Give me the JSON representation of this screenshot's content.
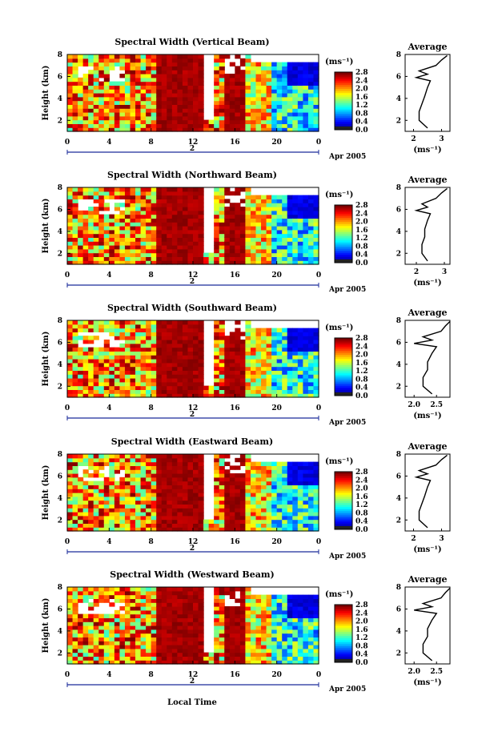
{
  "figure": {
    "x_axis_title": "Local Time",
    "date_label": "Apr 2005",
    "day_label": "2",
    "colorbar_unit": "(ms⁻¹)",
    "avg_unit": "(ms⁻¹)"
  },
  "chart_data": [
    {
      "type": "heatmap",
      "title": "Spectral Width (Vertical Beam)",
      "ylabel": "Height (km)",
      "xlabel": "Local Time",
      "x_ticks": [
        "0",
        "4",
        "8",
        "12",
        "16",
        "20",
        "0"
      ],
      "y_ticks": [
        "2",
        "4",
        "6",
        "8"
      ],
      "xlim": [
        0,
        24
      ],
      "ylim": [
        1,
        8
      ],
      "colorbar": {
        "ticks": [
          "2.8",
          "2.4",
          "2.0",
          "1.6",
          "1.2",
          "0.8",
          "0.4",
          "0.0"
        ],
        "range": [
          0.0,
          2.8
        ]
      },
      "average_profile": {
        "title": "Average",
        "x_ticks": [
          "2",
          "3"
        ],
        "xlim": [
          1.7,
          3.3
        ],
        "y_ticks": [
          "2",
          "4",
          "6",
          "8"
        ],
        "heights": [
          1.3,
          2.0,
          2.8,
          3.5,
          4.2,
          5.0,
          5.6,
          5.9,
          6.2,
          6.5,
          7.0,
          7.5,
          7.9
        ],
        "values": [
          2.5,
          2.2,
          2.2,
          2.3,
          2.4,
          2.5,
          2.6,
          2.1,
          2.5,
          2.2,
          2.8,
          3.0,
          3.2
        ]
      }
    },
    {
      "type": "heatmap",
      "title": "Spectral Width (Northward Beam)",
      "ylabel": "Height (km)",
      "xlabel": "Local Time",
      "x_ticks": [
        "0",
        "4",
        "8",
        "12",
        "16",
        "20",
        "0"
      ],
      "y_ticks": [
        "2",
        "4",
        "6",
        "8"
      ],
      "xlim": [
        0,
        24
      ],
      "ylim": [
        1,
        8
      ],
      "colorbar": {
        "ticks": [
          "2.8",
          "2.4",
          "2.0",
          "1.6",
          "1.2",
          "0.8",
          "0.4",
          "0.0"
        ],
        "range": [
          0.0,
          2.8
        ]
      },
      "average_profile": {
        "title": "Average",
        "x_ticks": [
          "2",
          "3"
        ],
        "xlim": [
          1.6,
          3.2
        ],
        "y_ticks": [
          "2",
          "4",
          "6",
          "8"
        ],
        "heights": [
          1.3,
          2.0,
          2.8,
          3.5,
          4.2,
          5.0,
          5.6,
          5.9,
          6.2,
          6.5,
          7.0,
          7.5,
          7.9
        ],
        "values": [
          2.4,
          2.2,
          2.2,
          2.3,
          2.3,
          2.4,
          2.5,
          2.0,
          2.4,
          2.2,
          2.7,
          2.9,
          3.1
        ]
      }
    },
    {
      "type": "heatmap",
      "title": "Spectral Width (Southward Beam)",
      "ylabel": "Height (km)",
      "xlabel": "Local Time",
      "x_ticks": [
        "0",
        "4",
        "8",
        "12",
        "16",
        "20",
        "0"
      ],
      "y_ticks": [
        "2",
        "4",
        "6",
        "8"
      ],
      "xlim": [
        0,
        24
      ],
      "ylim": [
        1,
        8
      ],
      "colorbar": {
        "ticks": [
          "2.8",
          "2.4",
          "2.0",
          "1.6",
          "1.2",
          "0.8",
          "0.4",
          "0.0"
        ],
        "range": [
          0.0,
          2.8
        ]
      },
      "average_profile": {
        "title": "Average",
        "x_ticks": [
          "2.0",
          "2.5"
        ],
        "xlim": [
          1.8,
          2.8
        ],
        "y_ticks": [
          "2",
          "4",
          "6",
          "8"
        ],
        "heights": [
          1.3,
          2.0,
          2.8,
          3.5,
          4.2,
          5.0,
          5.6,
          5.9,
          6.2,
          6.5,
          7.0,
          7.5,
          7.9
        ],
        "values": [
          2.4,
          2.2,
          2.2,
          2.3,
          2.3,
          2.4,
          2.5,
          2.0,
          2.4,
          2.2,
          2.6,
          2.7,
          2.8
        ]
      }
    },
    {
      "type": "heatmap",
      "title": "Spectral Width (Eastward Beam)",
      "ylabel": "Height (km)",
      "xlabel": "Local Time",
      "x_ticks": [
        "0",
        "4",
        "8",
        "12",
        "16",
        "20",
        "0"
      ],
      "y_ticks": [
        "2",
        "4",
        "6",
        "8"
      ],
      "xlim": [
        0,
        24
      ],
      "ylim": [
        1,
        8
      ],
      "colorbar": {
        "ticks": [
          "2.8",
          "2.4",
          "2.0",
          "1.6",
          "1.2",
          "0.8",
          "0.4",
          "0.0"
        ],
        "range": [
          0.0,
          2.8
        ]
      },
      "average_profile": {
        "title": "Average",
        "x_ticks": [
          "2",
          "3"
        ],
        "xlim": [
          1.7,
          3.3
        ],
        "y_ticks": [
          "2",
          "4",
          "6",
          "8"
        ],
        "heights": [
          1.3,
          2.0,
          2.8,
          3.5,
          4.2,
          5.0,
          5.6,
          5.9,
          6.2,
          6.5,
          7.0,
          7.5,
          7.9
        ],
        "values": [
          2.5,
          2.2,
          2.2,
          2.3,
          2.4,
          2.5,
          2.6,
          2.1,
          2.5,
          2.2,
          2.8,
          3.0,
          3.2
        ]
      }
    },
    {
      "type": "heatmap",
      "title": "Spectral Width (Westward Beam)",
      "ylabel": "Height (km)",
      "xlabel": "Local Time",
      "x_ticks": [
        "0",
        "4",
        "8",
        "12",
        "16",
        "20",
        "0"
      ],
      "y_ticks": [
        "2",
        "4",
        "6",
        "8"
      ],
      "xlim": [
        0,
        24
      ],
      "ylim": [
        1,
        8
      ],
      "colorbar": {
        "ticks": [
          "2.8",
          "2.4",
          "2.0",
          "1.6",
          "1.2",
          "0.8",
          "0.4",
          "0.0"
        ],
        "range": [
          0.0,
          2.8
        ]
      },
      "average_profile": {
        "title": "Average",
        "x_ticks": [
          "2.0",
          "2.5"
        ],
        "xlim": [
          1.8,
          2.8
        ],
        "y_ticks": [
          "2",
          "4",
          "6",
          "8"
        ],
        "heights": [
          1.3,
          2.0,
          2.8,
          3.5,
          4.2,
          5.0,
          5.6,
          5.9,
          6.2,
          6.5,
          7.0,
          7.5,
          7.9
        ],
        "values": [
          2.4,
          2.2,
          2.2,
          2.3,
          2.3,
          2.4,
          2.5,
          2.0,
          2.4,
          2.2,
          2.6,
          2.7,
          2.8
        ]
      }
    }
  ]
}
